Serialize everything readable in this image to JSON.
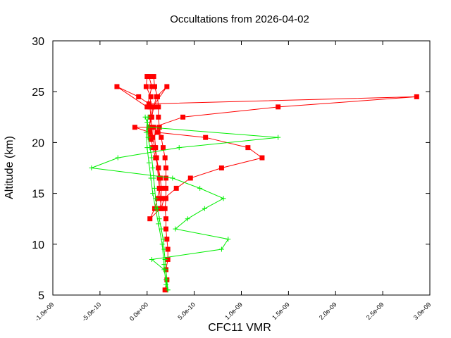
{
  "chart_data": {
    "type": "line",
    "title": "Occultations from 2026-04-02",
    "xlabel": "CFC11 VMR",
    "ylabel": "Altitude (km)",
    "xlim": [
      -1e-09,
      3e-09
    ],
    "ylim": [
      5,
      30
    ],
    "xticks": [
      -1e-09,
      -5e-10,
      0.0,
      5e-10,
      1e-09,
      1.5e-09,
      2e-09,
      2.5e-09,
      3e-09
    ],
    "xtick_labels": [
      "-1.0e-09",
      "-5.0e-10",
      "0.0e+00",
      "5.0e-10",
      "1.0e-09",
      "1.5e-09",
      "2.0e-09",
      "2.5e-09",
      "3.0e-09"
    ],
    "yticks": [
      5,
      10,
      15,
      20,
      25,
      30
    ],
    "ytick_labels": [
      "5",
      "10",
      "15",
      "20",
      "25",
      "30"
    ],
    "grid": false,
    "series": [
      {
        "name": "occultation-red",
        "color": "#ff0000",
        "marker": "square",
        "points": [
          [
            1.9e-10,
            5.5
          ],
          [
            2.1e-10,
            6.5
          ],
          [
            2e-10,
            7.5
          ],
          [
            2.2e-10,
            8.5
          ],
          [
            2.2e-10,
            9.5
          ],
          [
            2.1e-10,
            10.5
          ],
          [
            2e-10,
            11.5
          ],
          [
            2e-10,
            12.5
          ],
          [
            1.9e-10,
            13.5
          ],
          [
            2e-10,
            14.5
          ],
          [
            2e-10,
            15.5
          ],
          [
            2e-10,
            16.5
          ],
          [
            2e-10,
            17.5
          ],
          [
            1.9e-10,
            18.5
          ],
          [
            1.7e-10,
            19.5
          ],
          [
            1.5e-10,
            20.5
          ],
          [
            1.3e-10,
            21.5
          ],
          [
            1.2e-10,
            22.5
          ],
          [
            1.2e-10,
            23.5
          ],
          [
            1.1e-10,
            24.5
          ],
          [
            8e-11,
            25.5
          ],
          [
            7e-11,
            26.5
          ],
          [
            0.0,
            26.5
          ],
          [
            -1e-11,
            25.5
          ],
          [
            4e-11,
            24.5
          ],
          [
            3e-11,
            23.5
          ],
          [
            4e-11,
            22.5
          ],
          [
            5e-11,
            21.5
          ],
          [
            6e-11,
            20.5
          ],
          [
            8e-11,
            19.5
          ],
          [
            1e-10,
            18.5
          ],
          [
            1.2e-10,
            17.5
          ],
          [
            1.4e-10,
            16.5
          ],
          [
            1.5e-10,
            15.5
          ],
          [
            1.5e-10,
            14.5
          ],
          [
            1.4e-10,
            13.5
          ],
          [
            3e-11,
            12.5
          ],
          [
            8e-11,
            13.5
          ],
          [
            1.1e-10,
            14.5
          ],
          [
            1.3e-10,
            15.5
          ],
          [
            1.3e-10,
            16.5
          ],
          [
            1.2e-10,
            17.5
          ],
          [
            9e-11,
            18.5
          ],
          [
            6e-11,
            19.5
          ],
          [
            4e-11,
            20.5
          ],
          [
            2e-11,
            21.5
          ],
          [
            5e-11,
            22.5
          ],
          [
            7e-11,
            23.5
          ],
          [
            1e-10,
            24.5
          ],
          [
            2.1e-10,
            25.5
          ],
          [
            6e-11,
            23.5
          ],
          [
            2e-11,
            21.5
          ],
          [
            -1.3e-10,
            21.5
          ],
          [
            3e-11,
            21.0
          ],
          [
            4e-11,
            20.3
          ],
          [
            1.1e-10,
            21.0
          ],
          [
            6.2e-10,
            20.5
          ],
          [
            1.07e-09,
            19.5
          ],
          [
            1.22e-09,
            18.5
          ],
          [
            7.9e-10,
            17.5
          ],
          [
            4.6e-10,
            16.5
          ],
          [
            3.1e-10,
            15.5
          ],
          [
            1.8e-10,
            14.5
          ],
          [
            1.5e-10,
            13.5
          ],
          [
            9e-11,
            19.5
          ],
          [
            7e-11,
            21.5
          ],
          [
            3.8e-10,
            22.5
          ],
          [
            1.39e-09,
            23.5
          ],
          [
            2.86e-09,
            24.5
          ],
          [
            2e-11,
            23.8
          ],
          [
            -9e-11,
            24.5
          ],
          [
            -3.2e-10,
            25.5
          ],
          [
            0.0,
            23.5
          ],
          [
            5e-11,
            25.5
          ],
          [
            2e-11,
            26.5
          ]
        ]
      },
      {
        "name": "occultation-green",
        "color": "#00ee00",
        "marker": "plus",
        "points": [
          [
            2.2e-10,
            5.5
          ],
          [
            2e-10,
            6.5
          ],
          [
            1.8e-10,
            7.5
          ],
          [
            5e-11,
            8.5
          ],
          [
            7.9e-10,
            9.5
          ],
          [
            8.6e-10,
            10.5
          ],
          [
            3e-10,
            11.5
          ],
          [
            4.3e-10,
            12.5
          ],
          [
            6.1e-10,
            13.5
          ],
          [
            8.1e-10,
            14.5
          ],
          [
            5.6e-10,
            15.5
          ],
          [
            2.7e-10,
            16.5
          ],
          [
            -5.9e-10,
            17.5
          ],
          [
            -3.1e-10,
            18.5
          ],
          [
            3.4e-10,
            19.5
          ],
          [
            1.39e-09,
            20.5
          ],
          [
            2e-11,
            21.5
          ],
          [
            -2e-11,
            22.5
          ],
          [
            0.0,
            22.0
          ],
          [
            1e-11,
            20.5
          ],
          [
            3e-11,
            19.5
          ],
          [
            5e-11,
            18.5
          ],
          [
            6e-11,
            17.5
          ],
          [
            7e-11,
            16.5
          ],
          [
            8e-11,
            15.5
          ],
          [
            9e-11,
            14.5
          ],
          [
            1.1e-10,
            13.5
          ],
          [
            1.3e-10,
            12.5
          ],
          [
            1.5e-10,
            11.5
          ],
          [
            1.7e-10,
            10.5
          ],
          [
            1.8e-10,
            9.5
          ],
          [
            1.9e-10,
            8.5
          ],
          [
            2e-10,
            7.5
          ],
          [
            2.1e-10,
            6.5
          ],
          [
            2.2e-10,
            5.5
          ],
          [
            2e-10,
            6.0
          ],
          [
            1.8e-10,
            8.0
          ],
          [
            1.6e-10,
            10.0
          ],
          [
            1.2e-10,
            12.0
          ],
          [
            9e-11,
            13.5
          ],
          [
            6e-11,
            15.0
          ],
          [
            4e-11,
            16.5
          ],
          [
            2e-11,
            18.0
          ],
          [
            0.0,
            19.5
          ],
          [
            -1e-11,
            21.0
          ],
          [
            1e-11,
            22.5
          ]
        ]
      }
    ]
  }
}
